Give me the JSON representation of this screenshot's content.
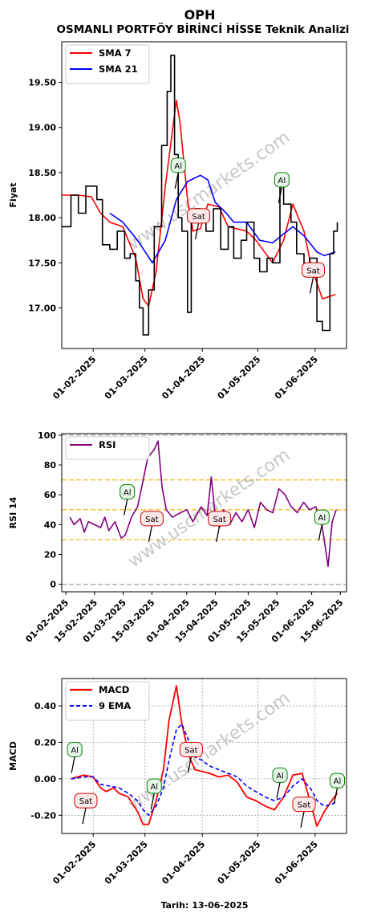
{
  "header": {
    "symbol": "OPH",
    "title": "OSMANLI PORTFÖY BİRİNCİ HİSSE Teknik Analizi"
  },
  "watermark": "www.uscmarkets.com",
  "footer": {
    "date_label": "Tarih: 13-06-2025"
  },
  "colors": {
    "price": "#000000",
    "sma7": "#ff0000",
    "sma21": "#0000ff",
    "rsi": "#800080",
    "macd": "#ff0000",
    "signal": "#0000ff",
    "buy_border": "#008000",
    "buy_fill": "#e8f5e9",
    "sell_border": "#cc0000",
    "sell_fill": "#fde8e8",
    "level_70_30": "#f0c030",
    "level_100_0": "#aaaaaa"
  },
  "chart_data": [
    {
      "type": "line",
      "panel": "price",
      "ylabel": "Fiyat",
      "ylim": [
        16.55,
        19.95
      ],
      "yticks": [
        17.0,
        17.5,
        18.0,
        18.5,
        19.0,
        19.5
      ],
      "ytick_labels": [
        "17.00",
        "17.50",
        "18.00",
        "18.50",
        "19.00",
        "19.50"
      ],
      "xtick_labels": [
        "01-02-2025",
        "01-03-2025",
        "01-04-2025",
        "01-05-2025",
        "01-06-2025"
      ],
      "xlim": [
        "2025-01-15",
        "2025-06-18"
      ],
      "legend": "top-left",
      "series": [
        {
          "name": "SMA 7",
          "x": [
            "2025-01-15",
            "2025-01-24",
            "2025-01-31",
            "2025-02-05",
            "2025-02-10",
            "2025-02-17",
            "2025-02-20",
            "2025-02-24",
            "2025-02-28",
            "2025-03-03",
            "2025-03-07",
            "2025-03-12",
            "2025-03-18",
            "2025-03-20",
            "2025-03-24",
            "2025-03-27",
            "2025-03-31",
            "2025-04-04",
            "2025-04-10",
            "2025-04-15",
            "2025-04-25",
            "2025-04-30",
            "2025-05-09",
            "2025-05-15",
            "2025-05-20",
            "2025-05-26",
            "2025-05-30",
            "2025-06-05",
            "2025-06-12"
          ],
          "values": [
            18.25,
            18.25,
            18.23,
            18.05,
            17.95,
            17.9,
            17.75,
            17.55,
            17.1,
            17.02,
            17.4,
            18.35,
            19.3,
            19.05,
            18.2,
            17.85,
            17.88,
            18.15,
            18.12,
            17.9,
            17.85,
            17.75,
            17.5,
            17.75,
            18.15,
            17.85,
            17.45,
            17.1,
            17.15
          ]
        },
        {
          "name": "SMA 21",
          "x": [
            "2025-02-10",
            "2025-02-17",
            "2025-02-25",
            "2025-03-05",
            "2025-03-12",
            "2025-03-18",
            "2025-03-24",
            "2025-03-31",
            "2025-04-04",
            "2025-04-08",
            "2025-04-14",
            "2025-04-18",
            "2025-04-25",
            "2025-05-02",
            "2025-05-09",
            "2025-05-15",
            "2025-05-20",
            "2025-05-26",
            "2025-06-02",
            "2025-06-06",
            "2025-06-12"
          ],
          "values": [
            18.05,
            17.95,
            17.75,
            17.5,
            17.75,
            18.2,
            18.4,
            18.47,
            18.42,
            18.17,
            18.05,
            17.95,
            17.95,
            17.75,
            17.72,
            17.82,
            17.9,
            17.8,
            17.62,
            17.58,
            17.62
          ]
        },
        {
          "name": "",
          "x": [
            "2025-01-15",
            "2025-01-20",
            "2025-01-24",
            "2025-01-28",
            "2025-02-03",
            "2025-02-06",
            "2025-02-10",
            "2025-02-14",
            "2025-02-18",
            "2025-02-21",
            "2025-02-24",
            "2025-02-26",
            "2025-02-28",
            "2025-03-03",
            "2025-03-06",
            "2025-03-10",
            "2025-03-13",
            "2025-03-15",
            "2025-03-17",
            "2025-03-19",
            "2025-03-21",
            "2025-03-24",
            "2025-03-26",
            "2025-03-28",
            "2025-03-31",
            "2025-04-03",
            "2025-04-07",
            "2025-04-11",
            "2025-04-15",
            "2025-04-18",
            "2025-04-22",
            "2025-04-25",
            "2025-04-29",
            "2025-05-02",
            "2025-05-06",
            "2025-05-09",
            "2025-05-13",
            "2025-05-15",
            "2025-05-19",
            "2025-05-22",
            "2025-05-26",
            "2025-05-29",
            "2025-06-02",
            "2025-06-05",
            "2025-06-09",
            "2025-06-11",
            "2025-06-13"
          ],
          "values": [
            17.9,
            18.25,
            18.05,
            18.35,
            18.2,
            17.7,
            17.65,
            17.85,
            17.55,
            17.6,
            17.3,
            17.0,
            16.7,
            17.2,
            17.9,
            18.8,
            19.4,
            19.8,
            18.7,
            18.0,
            17.85,
            16.95,
            17.95,
            18.1,
            18.05,
            17.85,
            18.1,
            17.65,
            17.9,
            17.55,
            17.75,
            17.95,
            17.55,
            17.4,
            17.55,
            17.5,
            18.4,
            18.15,
            17.95,
            17.6,
            17.45,
            17.55,
            16.85,
            16.75,
            17.6,
            17.85,
            17.95
          ]
        }
      ],
      "annotations": [
        {
          "label": "Al",
          "x": "2025-03-19",
          "y": 18.58
        },
        {
          "label": "Sat",
          "x": "2025-03-30",
          "y": 18.02
        },
        {
          "label": "Al",
          "x": "2025-05-14",
          "y": 18.42
        },
        {
          "label": "Sat",
          "x": "2025-05-31",
          "y": 17.42
        }
      ]
    },
    {
      "type": "line",
      "panel": "rsi",
      "ylabel": "RSI 14",
      "ylim": [
        -5,
        101
      ],
      "yticks": [
        0,
        20,
        40,
        60,
        80,
        100
      ],
      "ytick_labels": [
        "0",
        "20",
        "40",
        "60",
        "80",
        "100"
      ],
      "xtick_labels": [
        "01-02-2025",
        "15-02-2025",
        "01-03-2025",
        "15-03-2025",
        "01-04-2025",
        "15-04-2025",
        "01-05-2025",
        "15-05-2025",
        "01-06-2025",
        "15-06-2025"
      ],
      "xlim": [
        "2025-01-30",
        "2025-06-18"
      ],
      "levels": [
        100,
        70,
        50,
        30,
        0
      ],
      "legend": "top-left",
      "series": [
        {
          "name": "RSI",
          "x": [
            "2025-02-03",
            "2025-02-05",
            "2025-02-08",
            "2025-02-10",
            "2025-02-12",
            "2025-02-15",
            "2025-02-18",
            "2025-02-20",
            "2025-02-22",
            "2025-02-25",
            "2025-02-28",
            "2025-03-02",
            "2025-03-05",
            "2025-03-08",
            "2025-03-10",
            "2025-03-13",
            "2025-03-16",
            "2025-03-18",
            "2025-03-20",
            "2025-03-22",
            "2025-03-25",
            "2025-03-29",
            "2025-04-01",
            "2025-04-04",
            "2025-04-08",
            "2025-04-11",
            "2025-04-13",
            "2025-04-15",
            "2025-04-17",
            "2025-04-19",
            "2025-04-22",
            "2025-04-25",
            "2025-04-28",
            "2025-05-01",
            "2025-05-04",
            "2025-05-07",
            "2025-05-10",
            "2025-05-13",
            "2025-05-16",
            "2025-05-19",
            "2025-05-22",
            "2025-05-25",
            "2025-05-28",
            "2025-05-31",
            "2025-06-03",
            "2025-06-06",
            "2025-06-09",
            "2025-06-11",
            "2025-06-13"
          ],
          "values": [
            45,
            40,
            44,
            35,
            42,
            40,
            38,
            45,
            36,
            42,
            31,
            33,
            45,
            52,
            65,
            85,
            90,
            96,
            65,
            50,
            45,
            48,
            50,
            42,
            52,
            46,
            72,
            45,
            38,
            50,
            40,
            48,
            42,
            50,
            38,
            55,
            50,
            48,
            64,
            60,
            52,
            48,
            55,
            50,
            52,
            40,
            12,
            42,
            50
          ]
        }
      ],
      "annotations": [
        {
          "label": "Al",
          "x": "2025-03-03",
          "y": 62
        },
        {
          "label": "Sat",
          "x": "2025-03-15",
          "y": 44
        },
        {
          "label": "Sat",
          "x": "2025-04-17",
          "y": 44
        },
        {
          "label": "Al",
          "x": "2025-06-06",
          "y": 45
        }
      ]
    },
    {
      "type": "line",
      "panel": "macd",
      "ylabel": "MACD",
      "xlabel": "Tarih: 13-06-2025",
      "ylim": [
        -0.3,
        0.55
      ],
      "yticks": [
        -0.2,
        0.0,
        0.2,
        0.4
      ],
      "ytick_labels": [
        "-0.20",
        "0.00",
        "0.20",
        "0.40"
      ],
      "xtick_labels": [
        "01-02-2025",
        "01-03-2025",
        "01-04-2025",
        "01-05-2025",
        "01-06-2025"
      ],
      "xlim": [
        "2025-01-15",
        "2025-06-18"
      ],
      "grid": true,
      "legend": "top-left",
      "series": [
        {
          "name": "MACD",
          "x": [
            "2025-01-20",
            "2025-01-27",
            "2025-02-01",
            "2025-02-05",
            "2025-02-08",
            "2025-02-12",
            "2025-02-15",
            "2025-02-20",
            "2025-02-25",
            "2025-02-28",
            "2025-03-03",
            "2025-03-07",
            "2025-03-11",
            "2025-03-14",
            "2025-03-18",
            "2025-03-21",
            "2025-03-25",
            "2025-03-28",
            "2025-04-01",
            "2025-04-05",
            "2025-04-10",
            "2025-04-15",
            "2025-04-20",
            "2025-04-25",
            "2025-04-30",
            "2025-05-05",
            "2025-05-10",
            "2025-05-15",
            "2025-05-20",
            "2025-05-25",
            "2025-05-30",
            "2025-06-02",
            "2025-06-06",
            "2025-06-10",
            "2025-06-13"
          ],
          "values": [
            0.0,
            0.02,
            0.01,
            -0.05,
            -0.07,
            -0.05,
            -0.08,
            -0.1,
            -0.18,
            -0.25,
            -0.25,
            -0.12,
            0.05,
            0.32,
            0.51,
            0.3,
            0.12,
            0.05,
            0.04,
            0.03,
            0.01,
            0.02,
            -0.02,
            -0.1,
            -0.12,
            -0.15,
            -0.17,
            -0.1,
            0.02,
            0.03,
            -0.15,
            -0.26,
            -0.18,
            -0.12,
            -0.08
          ]
        },
        {
          "name": "9 EMA",
          "x": [
            "2025-01-20",
            "2025-01-27",
            "2025-02-01",
            "2025-02-05",
            "2025-02-10",
            "2025-02-15",
            "2025-02-20",
            "2025-02-25",
            "2025-02-28",
            "2025-03-03",
            "2025-03-07",
            "2025-03-11",
            "2025-03-14",
            "2025-03-18",
            "2025-03-21",
            "2025-03-25",
            "2025-03-28",
            "2025-04-01",
            "2025-04-05",
            "2025-04-10",
            "2025-04-15",
            "2025-04-20",
            "2025-04-25",
            "2025-04-30",
            "2025-05-05",
            "2025-05-10",
            "2025-05-15",
            "2025-05-20",
            "2025-05-25",
            "2025-05-30",
            "2025-06-02",
            "2025-06-06",
            "2025-06-10",
            "2025-06-13"
          ],
          "values": [
            0.0,
            0.01,
            0.01,
            -0.03,
            -0.04,
            -0.05,
            -0.08,
            -0.12,
            -0.17,
            -0.2,
            -0.15,
            -0.05,
            0.1,
            0.27,
            0.3,
            0.2,
            0.12,
            0.1,
            0.07,
            0.05,
            0.03,
            0.01,
            -0.04,
            -0.07,
            -0.1,
            -0.12,
            -0.1,
            -0.04,
            0.0,
            -0.06,
            -0.12,
            -0.15,
            -0.14,
            -0.12
          ]
        }
      ],
      "annotations": [
        {
          "label": "Al",
          "x": "2025-01-22",
          "y": 0.16
        },
        {
          "label": "Sat",
          "x": "2025-01-28",
          "y": -0.12
        },
        {
          "label": "Al",
          "x": "2025-03-06",
          "y": -0.04
        },
        {
          "label": "Sat",
          "x": "2025-03-26",
          "y": 0.16
        },
        {
          "label": "Al",
          "x": "2025-05-13",
          "y": 0.02
        },
        {
          "label": "Sat",
          "x": "2025-05-26",
          "y": -0.14
        },
        {
          "label": "Al",
          "x": "2025-06-13",
          "y": -0.01
        }
      ]
    }
  ]
}
